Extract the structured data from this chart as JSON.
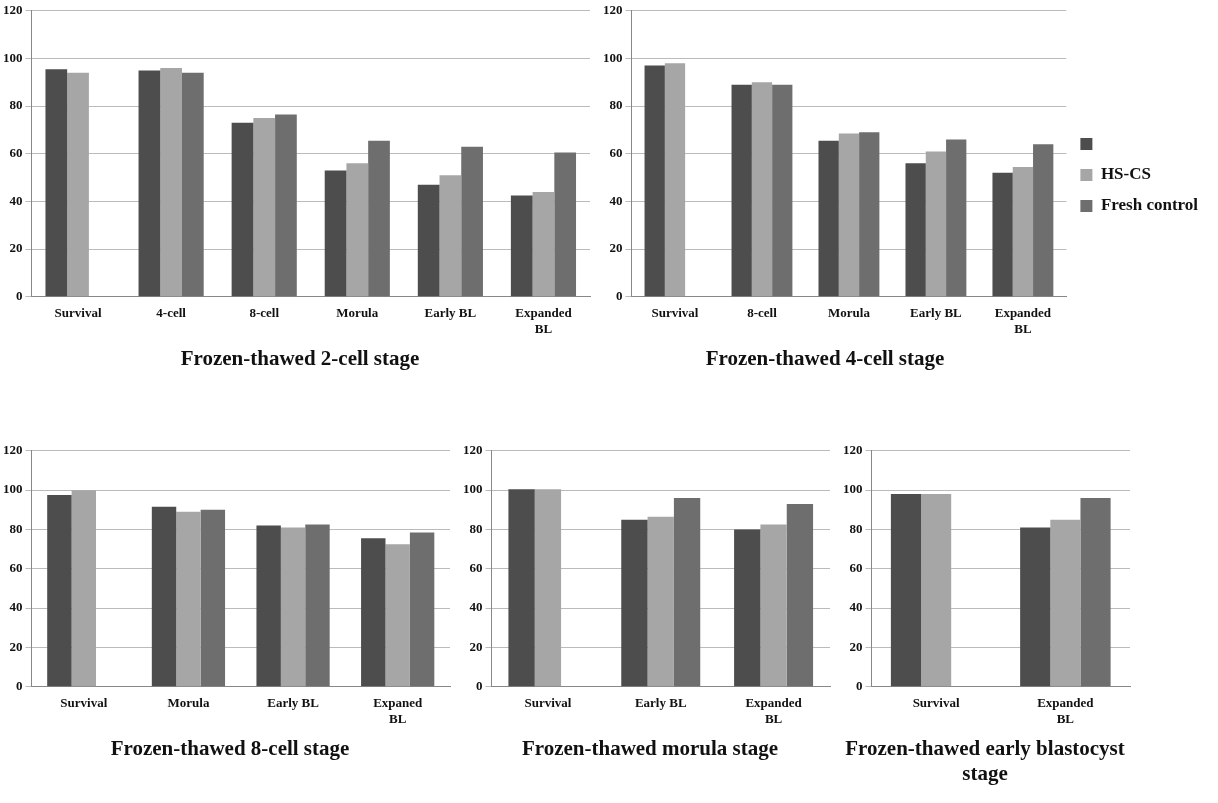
{
  "chart_data": [
    {
      "type": "bar",
      "title": "Frozen-thawed 2-cell stage",
      "categories": [
        "Survival",
        "4-cell",
        "8-cell",
        "Morula",
        "Early BL",
        "Expanded BL"
      ],
      "ylim": [
        0,
        120
      ],
      "yticks": [
        0,
        20,
        40,
        60,
        80,
        100,
        120
      ],
      "grid": "y",
      "series": [
        {
          "color": "#4d4d4d",
          "values": [
            95.5,
            95,
            73,
            53,
            47,
            42.5
          ]
        },
        {
          "color": "#a6a6a6",
          "values": [
            94,
            96,
            75,
            56,
            51,
            44
          ]
        },
        {
          "color": "#6e6e6e",
          "values": [
            null,
            94,
            76.5,
            65.5,
            63,
            60.5
          ]
        }
      ]
    },
    {
      "type": "bar",
      "title": "Frozen-thawed 4-cell stage",
      "categories": [
        "Survival",
        "8-cell",
        "Morula",
        "Early BL",
        "Expanded BL"
      ],
      "ylim": [
        0,
        120
      ],
      "yticks": [
        0,
        20,
        40,
        60,
        80,
        100,
        120
      ],
      "grid": "y",
      "legend": "right",
      "series": [
        {
          "color": "#4d4d4d",
          "values": [
            97,
            89,
            65.5,
            56,
            52
          ]
        },
        {
          "name": "HS-CS",
          "color": "#a6a6a6",
          "values": [
            98,
            90,
            68.5,
            61,
            54.5
          ]
        },
        {
          "name": "Fresh control",
          "color": "#6e6e6e",
          "values": [
            null,
            89,
            69,
            66,
            64
          ]
        }
      ]
    },
    {
      "type": "bar",
      "title": "Frozen-thawed 8-cell stage",
      "categories": [
        "Survival",
        "Morula",
        "Early BL",
        "Expaned BL"
      ],
      "ylim": [
        0,
        120
      ],
      "yticks": [
        0,
        20,
        40,
        60,
        80,
        100,
        120
      ],
      "grid": "y",
      "series": [
        {
          "color": "#4d4d4d",
          "values": [
            97.5,
            91.5,
            82,
            75.5
          ]
        },
        {
          "color": "#a6a6a6",
          "values": [
            100,
            89,
            81,
            72.5
          ]
        },
        {
          "color": "#6e6e6e",
          "values": [
            null,
            90,
            82.5,
            78.5
          ]
        }
      ]
    },
    {
      "type": "bar",
      "title": "Frozen-thawed morula stage",
      "categories": [
        "Survival",
        "Early BL",
        "Expanded BL"
      ],
      "ylim": [
        0,
        120
      ],
      "yticks": [
        0,
        20,
        40,
        60,
        80,
        100,
        120
      ],
      "grid": "y",
      "series": [
        {
          "color": "#4d4d4d",
          "values": [
            100.5,
            85,
            80
          ]
        },
        {
          "color": "#a6a6a6",
          "values": [
            100.5,
            86.5,
            82.5
          ]
        },
        {
          "color": "#6e6e6e",
          "values": [
            null,
            96,
            93
          ]
        }
      ]
    },
    {
      "type": "bar",
      "title": "Frozen-thawed early blastocyst stage",
      "categories": [
        "Survival",
        "Expanded BL"
      ],
      "ylim": [
        0,
        120
      ],
      "yticks": [
        0,
        20,
        40,
        60,
        80,
        100,
        120
      ],
      "grid": "y",
      "series": [
        {
          "color": "#4d4d4d",
          "values": [
            98,
            81
          ]
        },
        {
          "color": "#a6a6a6",
          "values": [
            98,
            85
          ]
        },
        {
          "color": "#6e6e6e",
          "values": [
            null,
            96
          ]
        }
      ]
    }
  ]
}
